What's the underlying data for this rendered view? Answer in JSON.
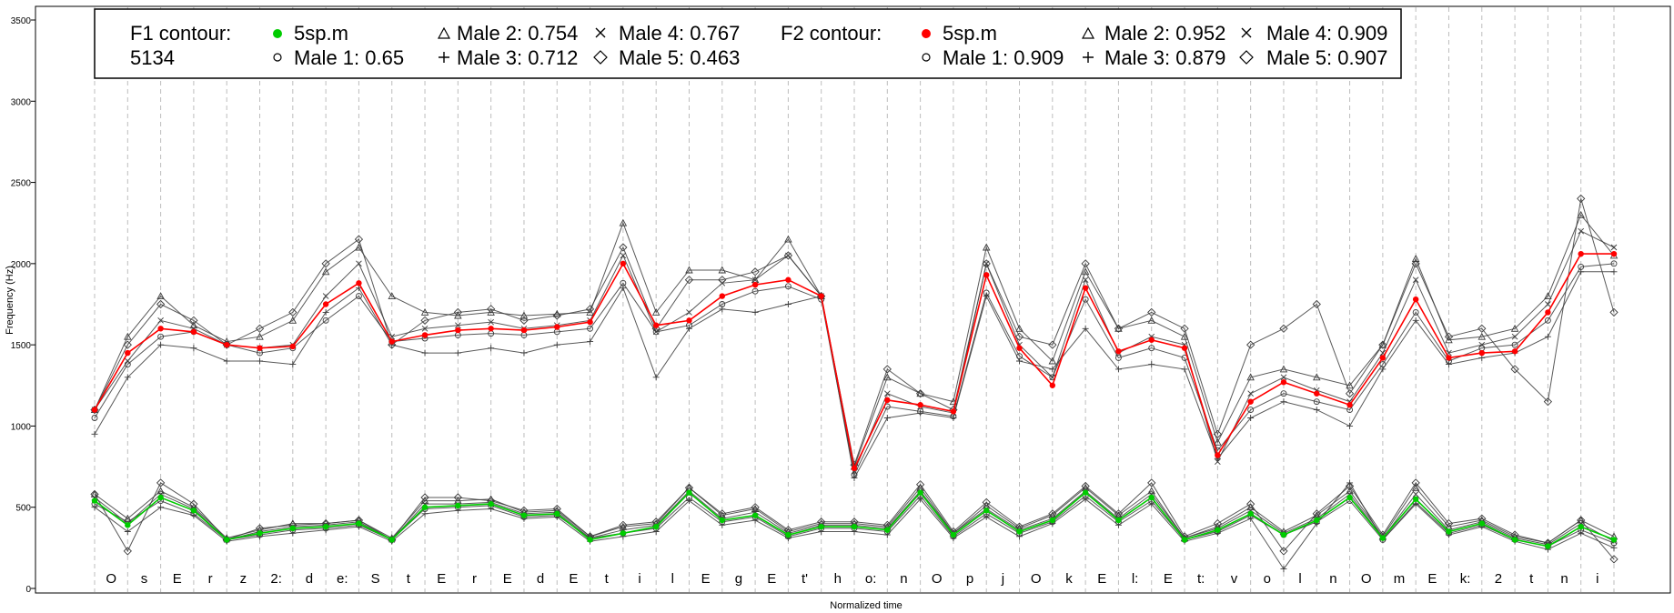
{
  "chart_data": {
    "type": "line",
    "xlabel": "Normalized time",
    "ylabel": "Frequency (Hz)",
    "ylim": [
      -50,
      3600
    ],
    "yticks": [
      0,
      500,
      1000,
      1500,
      2000,
      2500,
      3000,
      3500
    ],
    "segments": [
      "O",
      "s",
      "E",
      "r",
      "z",
      "2:",
      "d",
      "e:",
      "S",
      "t",
      "E",
      "r",
      "E",
      "d",
      "E",
      "t",
      "i",
      "l",
      "E",
      "g",
      "E",
      "t'",
      "h",
      "o:",
      "n",
      "O",
      "p",
      "j",
      "O",
      "k",
      "E",
      "l:",
      "E",
      "t:",
      "v",
      "o",
      "l",
      "n",
      "O",
      "m",
      "E",
      "k:",
      "2",
      "t",
      "n",
      "i"
    ],
    "legend": {
      "f1_title": "F1 contour:",
      "f1_subtitle": "5134",
      "f2_title": "F2 contour:",
      "f1_entries": [
        "5sp.m",
        "Male 1: 0.65",
        "Male 2: 0.754",
        "Male 3: 0.712",
        "Male 4: 0.767",
        "Male 5: 0.463"
      ],
      "f2_entries": [
        "5sp.m",
        "Male 1: 0.909",
        "Male 2: 0.952",
        "Male 3: 0.879",
        "Male 4: 0.909",
        "Male 5: 0.907"
      ]
    },
    "colors": {
      "f1": "#00cc00",
      "f2": "#ff0000",
      "speakers": "#3c3c3c",
      "grid": "#bdbdbd"
    },
    "series_names": [
      "5sp.m",
      "Male 1",
      "Male 2",
      "Male 3",
      "Male 4",
      "Male 5"
    ],
    "speaker_markers": [
      "circle",
      "triangle",
      "plus",
      "cross",
      "diamond"
    ],
    "speaker_styles": [
      "o",
      "^",
      "+",
      "x",
      "d"
    ],
    "x": [
      0,
      2,
      4,
      6,
      8,
      10,
      12,
      14,
      16,
      18,
      20,
      22,
      24,
      26,
      28,
      30,
      32,
      34,
      36,
      38,
      40,
      42,
      44,
      46,
      48,
      50,
      52,
      54,
      56,
      58,
      60,
      62,
      64,
      66,
      68,
      70,
      72,
      74,
      76,
      78,
      80,
      82,
      84,
      86,
      88,
      90,
      92
    ],
    "f2": {
      "5sp.m": [
        1100,
        1450,
        1600,
        1580,
        1500,
        1480,
        1490,
        1750,
        1880,
        1520,
        1560,
        1590,
        1600,
        1590,
        1610,
        1640,
        2000,
        1620,
        1650,
        1800,
        1870,
        1900,
        1800,
        740,
        1160,
        1130,
        1090,
        1930,
        1480,
        1250,
        1850,
        1460,
        1530,
        1480,
        820,
        1150,
        1270,
        1200,
        1130,
        1420,
        1780,
        1420,
        1450,
        1460,
        1700,
        2060,
        2060
      ],
      "Male 1": [
        1050,
        1380,
        1550,
        1580,
        1500,
        1450,
        1480,
        1650,
        1800,
        1520,
        1540,
        1560,
        1570,
        1560,
        1580,
        1600,
        1880,
        1580,
        1620,
        1750,
        1830,
        1860,
        1780,
        700,
        1120,
        1090,
        1060,
        1820,
        1430,
        1300,
        1780,
        1420,
        1480,
        1420,
        850,
        1100,
        1200,
        1150,
        1100,
        1380,
        1700,
        1400,
        1480,
        1500,
        1650,
        1980,
        2000
      ],
      "Male 2": [
        1100,
        1550,
        1800,
        1620,
        1520,
        1550,
        1650,
        1950,
        2100,
        1800,
        1700,
        1680,
        1700,
        1680,
        1690,
        1700,
        2250,
        1700,
        1960,
        1960,
        1900,
        2150,
        1800,
        750,
        1300,
        1200,
        1150,
        2100,
        1600,
        1400,
        1950,
        1600,
        1650,
        1550,
        900,
        1300,
        1350,
        1300,
        1250,
        1500,
        2030,
        1530,
        1550,
        1600,
        1800,
        2300,
        2050
      ],
      "Male 3": [
        950,
        1300,
        1500,
        1480,
        1400,
        1400,
        1380,
        1700,
        1850,
        1500,
        1450,
        1450,
        1480,
        1450,
        1500,
        1520,
        1850,
        1300,
        1600,
        1720,
        1700,
        1750,
        1800,
        680,
        1050,
        1080,
        1050,
        1800,
        1400,
        1350,
        1600,
        1350,
        1380,
        1350,
        800,
        1050,
        1150,
        1100,
        1000,
        1350,
        1650,
        1380,
        1420,
        1450,
        1550,
        1950,
        1950
      ],
      "Male 4": [
        1100,
        1400,
        1650,
        1600,
        1500,
        1480,
        1500,
        1800,
        2000,
        1550,
        1600,
        1620,
        1640,
        1600,
        1620,
        1650,
        2050,
        1580,
        1700,
        1880,
        1900,
        2050,
        1800,
        720,
        1200,
        1120,
        1080,
        2000,
        1500,
        1300,
        1900,
        1450,
        1550,
        1500,
        780,
        1200,
        1300,
        1220,
        1150,
        1450,
        1900,
        1450,
        1500,
        1550,
        1750,
        2200,
        2100
      ],
      "Male 5": [
        1100,
        1500,
        1750,
        1650,
        1500,
        1600,
        1700,
        2000,
        2150,
        1500,
        1650,
        1700,
        1720,
        1650,
        1680,
        1720,
        2100,
        1600,
        1900,
        1900,
        1950,
        2050,
        1800,
        760,
        1350,
        1200,
        1100,
        2000,
        1550,
        1500,
        2000,
        1600,
        1700,
        1600,
        950,
        1500,
        1600,
        1750,
        1200,
        1500,
        2000,
        1550,
        1600,
        1350,
        1150,
        2400,
        1700
      ]
    },
    "f1": {
      "5sp.m": [
        540,
        390,
        560,
        480,
        300,
        340,
        370,
        380,
        400,
        300,
        500,
        510,
        520,
        450,
        460,
        300,
        340,
        380,
        590,
        420,
        450,
        330,
        380,
        380,
        360,
        590,
        330,
        480,
        350,
        420,
        590,
        420,
        560,
        300,
        360,
        460,
        330,
        420,
        560,
        310,
        550,
        350,
        400,
        300,
        260,
        380,
        300
      ],
      "Male 1": [
        520,
        410,
        540,
        460,
        300,
        330,
        360,
        370,
        390,
        300,
        490,
        500,
        510,
        440,
        450,
        310,
        340,
        370,
        560,
        410,
        440,
        320,
        370,
        370,
        350,
        570,
        320,
        460,
        340,
        410,
        570,
        410,
        540,
        300,
        350,
        450,
        330,
        410,
        540,
        300,
        530,
        340,
        390,
        300,
        260,
        360,
        280
      ],
      "Male 2": [
        580,
        430,
        600,
        500,
        310,
        360,
        400,
        400,
        420,
        310,
        540,
        540,
        550,
        470,
        480,
        320,
        380,
        400,
        620,
        450,
        490,
        350,
        400,
        400,
        380,
        620,
        340,
        510,
        370,
        450,
        620,
        450,
        600,
        310,
        380,
        500,
        350,
        450,
        600,
        320,
        620,
        380,
        420,
        320,
        280,
        420,
        320
      ],
      "Male 3": [
        500,
        350,
        500,
        450,
        290,
        320,
        340,
        360,
        380,
        290,
        460,
        480,
        490,
        430,
        440,
        290,
        320,
        350,
        540,
        390,
        420,
        310,
        350,
        350,
        330,
        550,
        310,
        440,
        320,
        400,
        550,
        390,
        520,
        290,
        340,
        430,
        120,
        400,
        650,
        300,
        520,
        330,
        380,
        290,
        240,
        340,
        250
      ],
      "Male 4": [
        560,
        400,
        580,
        490,
        300,
        350,
        380,
        390,
        410,
        300,
        520,
        520,
        530,
        460,
        470,
        310,
        360,
        390,
        600,
        430,
        470,
        340,
        390,
        390,
        370,
        600,
        340,
        490,
        360,
        430,
        600,
        430,
        580,
        310,
        370,
        480,
        340,
        430,
        580,
        310,
        580,
        360,
        410,
        310,
        270,
        400,
        290
      ],
      "Male 5": [
        580,
        230,
        650,
        520,
        300,
        370,
        390,
        400,
        420,
        300,
        560,
        560,
        540,
        480,
        490,
        320,
        390,
        410,
        620,
        460,
        500,
        360,
        410,
        410,
        390,
        640,
        350,
        530,
        380,
        460,
        630,
        460,
        650,
        320,
        400,
        520,
        230,
        460,
        630,
        330,
        650,
        400,
        430,
        330,
        280,
        420,
        180
      ]
    }
  }
}
